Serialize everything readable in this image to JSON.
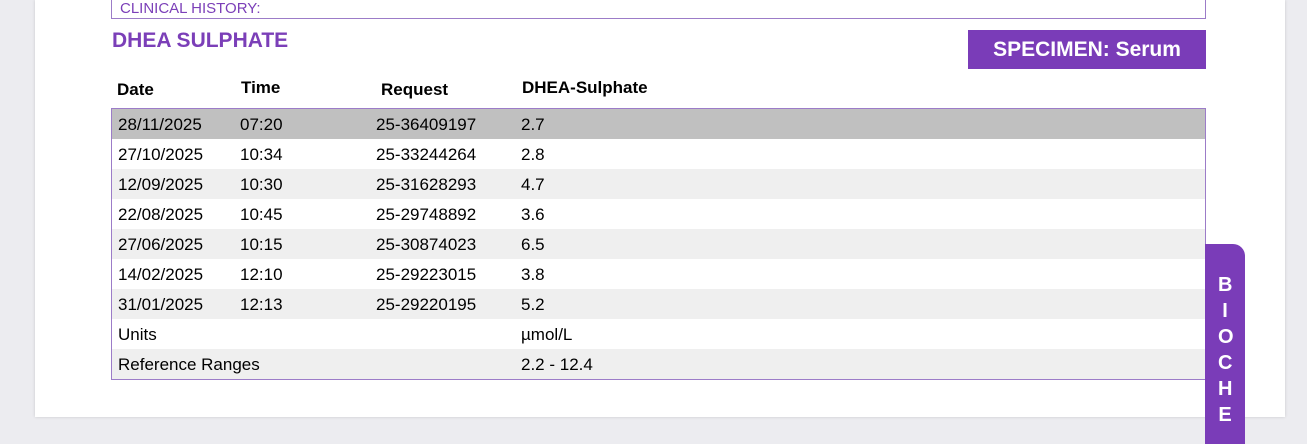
{
  "clinical_history_label": "CLINICAL HISTORY:",
  "section_title": "DHEA SULPHATE",
  "specimen_label": "SPECIMEN: Serum",
  "columns": [
    "Date",
    "Time",
    "Request",
    "DHEA-Sulphate"
  ],
  "rows": [
    {
      "date": "28/11/2025",
      "time": "07:20",
      "request": "25-36409197",
      "value": "2.7"
    },
    {
      "date": "27/10/2025",
      "time": "10:34",
      "request": "25-33244264",
      "value": "2.8"
    },
    {
      "date": "12/09/2025",
      "time": "10:30",
      "request": "25-31628293",
      "value": "4.7"
    },
    {
      "date": "22/08/2025",
      "time": "10:45",
      "request": "25-29748892",
      "value": "3.6"
    },
    {
      "date": "27/06/2025",
      "time": "10:15",
      "request": "25-30874023",
      "value": "6.5"
    },
    {
      "date": "14/02/2025",
      "time": "12:10",
      "request": "25-29223015",
      "value": "3.8"
    },
    {
      "date": "31/01/2025",
      "time": "12:13",
      "request": "25-29220195",
      "value": "5.2"
    }
  ],
  "units": {
    "label": "Units",
    "value": "µmol/L"
  },
  "reference": {
    "label": "Reference Ranges",
    "value": "2.2 - 12.4"
  },
  "side_tab": "BIOCHE",
  "colors": {
    "accent": "#7a3cb8",
    "selected_row": "#c0c0c0",
    "alt_row": "#efefef"
  }
}
